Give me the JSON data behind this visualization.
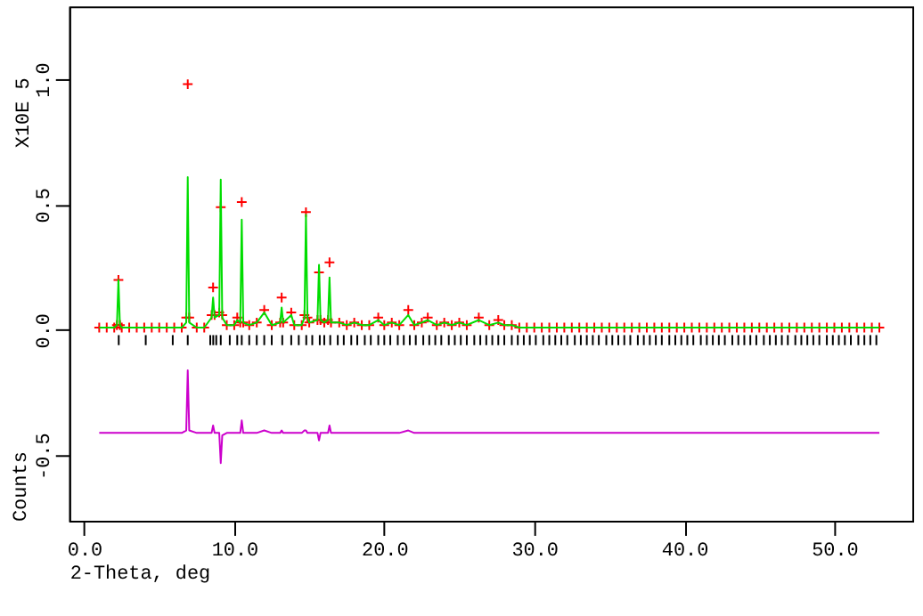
{
  "chart_data": {
    "type": "scatter",
    "xlabel": "2-Theta, deg",
    "ylabel": "Counts",
    "annotations": [
      "X10E 5"
    ],
    "xlim": [
      -1,
      55.2
    ],
    "ylim": [
      -0.76,
      1.29
    ],
    "xticks": [
      {
        "value": 0,
        "label": "0.0"
      },
      {
        "value": 10,
        "label": "10.0"
      },
      {
        "value": 20,
        "label": "20.0"
      },
      {
        "value": 30,
        "label": "30.0"
      },
      {
        "value": 40,
        "label": "40.0"
      },
      {
        "value": 50,
        "label": "50.0"
      }
    ],
    "yticks": [
      {
        "value": -0.5,
        "label": "-0.5"
      },
      {
        "value": 0,
        "label": "0.0"
      },
      {
        "value": 0.5,
        "label": "0.5"
      },
      {
        "value": 1,
        "label": "1.0"
      }
    ],
    "grid": false,
    "x": [
      1.0,
      1.5,
      2.0,
      2.18,
      2.28,
      2.38,
      2.5,
      3.0,
      3.5,
      4.0,
      4.5,
      5.0,
      5.5,
      6.0,
      6.5,
      6.8,
      6.9,
      7.0,
      7.5,
      8.0,
      8.49,
      8.59,
      8.69,
      9.0,
      9.1,
      9.2,
      9.5,
      10.0,
      10.2,
      10.4,
      10.5,
      10.6,
      11.0,
      11.5,
      12.0,
      12.5,
      13.06,
      13.16,
      13.26,
      13.8,
      14.0,
      14.5,
      14.68,
      14.78,
      14.88,
      15.0,
      15.55,
      15.65,
      15.75,
      16.0,
      16.25,
      16.35,
      16.45,
      17.0,
      17.5,
      18.0,
      18.5,
      19.0,
      19.6,
      20.0,
      20.5,
      21.0,
      21.6,
      22.0,
      22.5,
      22.9,
      23.5,
      24.0,
      24.5,
      25.0,
      25.5,
      26.3,
      27.0,
      27.6,
      28.0,
      28.5,
      29.0,
      29.5,
      30.0,
      30.5,
      31.0,
      31.5,
      32.0,
      32.5,
      33.0,
      33.5,
      34.0,
      34.5,
      35.0,
      35.5,
      36.0,
      36.5,
      37.0,
      37.5,
      38.0,
      38.5,
      39.0,
      39.5,
      40.0,
      40.5,
      41.0,
      41.5,
      42.0,
      42.5,
      43.0,
      43.5,
      44.0,
      44.5,
      45.0,
      45.5,
      46.0,
      46.5,
      47.0,
      47.5,
      48.0,
      48.5,
      49.0,
      49.5,
      50.0,
      50.5,
      51.0,
      51.5,
      52.0,
      52.5,
      53.0
    ],
    "series": [
      {
        "marker": "cross",
        "color": "#ff0000",
        "values": [
          0.01,
          0.01,
          0.01,
          0.02,
          0.2,
          0.02,
          0.01,
          0.01,
          0.01,
          0.01,
          0.01,
          0.01,
          0.01,
          0.01,
          0.01,
          0.05,
          0.98,
          0.05,
          0.01,
          0.01,
          0.06,
          0.17,
          0.06,
          0.07,
          0.49,
          0.06,
          0.02,
          0.02,
          0.05,
          0.03,
          0.51,
          0.03,
          0.02,
          0.03,
          0.08,
          0.02,
          0.03,
          0.13,
          0.03,
          0.07,
          0.02,
          0.02,
          0.06,
          0.47,
          0.05,
          0.03,
          0.04,
          0.23,
          0.04,
          0.03,
          0.04,
          0.27,
          0.03,
          0.03,
          0.02,
          0.03,
          0.02,
          0.02,
          0.05,
          0.02,
          0.03,
          0.02,
          0.08,
          0.02,
          0.03,
          0.05,
          0.02,
          0.03,
          0.02,
          0.03,
          0.02,
          0.05,
          0.02,
          0.04,
          0.02,
          0.02,
          0.01,
          0.01,
          0.01,
          0.01,
          0.01,
          0.01,
          0.01,
          0.01,
          0.01,
          0.01,
          0.01,
          0.01,
          0.01,
          0.01,
          0.01,
          0.01,
          0.01,
          0.01,
          0.01,
          0.01,
          0.01,
          0.01,
          0.01,
          0.01,
          0.01,
          0.01,
          0.01,
          0.01,
          0.01,
          0.01,
          0.01,
          0.01,
          0.01,
          0.01,
          0.01,
          0.01,
          0.01,
          0.01,
          0.01,
          0.01,
          0.01,
          0.01,
          0.01,
          0.01,
          0.01,
          0.01,
          0.01,
          0.01,
          0.01
        ]
      },
      {
        "type": "line",
        "line_style": "solid",
        "color": "#00dd00",
        "values": [
          0.01,
          0.01,
          0.01,
          0.02,
          0.2,
          0.02,
          0.01,
          0.01,
          0.01,
          0.01,
          0.01,
          0.01,
          0.01,
          0.01,
          0.01,
          0.03,
          0.61,
          0.03,
          0.01,
          0.01,
          0.05,
          0.13,
          0.05,
          0.06,
          0.6,
          0.05,
          0.02,
          0.02,
          0.04,
          0.03,
          0.44,
          0.03,
          0.02,
          0.03,
          0.07,
          0.02,
          0.03,
          0.09,
          0.03,
          0.06,
          0.02,
          0.02,
          0.05,
          0.46,
          0.05,
          0.03,
          0.04,
          0.26,
          0.04,
          0.03,
          0.04,
          0.21,
          0.03,
          0.03,
          0.02,
          0.03,
          0.02,
          0.02,
          0.04,
          0.02,
          0.03,
          0.02,
          0.06,
          0.02,
          0.03,
          0.04,
          0.02,
          0.03,
          0.02,
          0.03,
          0.02,
          0.04,
          0.02,
          0.03,
          0.02,
          0.02,
          0.01,
          0.01,
          0.01,
          0.01,
          0.01,
          0.01,
          0.01,
          0.01,
          0.01,
          0.01,
          0.01,
          0.01,
          0.01,
          0.01,
          0.01,
          0.01,
          0.01,
          0.01,
          0.01,
          0.01,
          0.01,
          0.01,
          0.01,
          0.01,
          0.01,
          0.01,
          0.01,
          0.01,
          0.01,
          0.01,
          0.01,
          0.01,
          0.01,
          0.01,
          0.01,
          0.01,
          0.01,
          0.01,
          0.01,
          0.01,
          0.01,
          0.01,
          0.01,
          0.01,
          0.01,
          0.01,
          0.01,
          0.01,
          0.01
        ]
      },
      {
        "type": "line",
        "line_style": "solid",
        "color": "#cc00cc",
        "values": [
          -0.41,
          -0.41,
          -0.41,
          -0.41,
          -0.41,
          -0.41,
          -0.41,
          -0.41,
          -0.41,
          -0.41,
          -0.41,
          -0.41,
          -0.41,
          -0.41,
          -0.41,
          -0.4,
          -0.16,
          -0.4,
          -0.41,
          -0.41,
          -0.41,
          -0.38,
          -0.41,
          -0.41,
          -0.53,
          -0.42,
          -0.41,
          -0.41,
          -0.41,
          -0.41,
          -0.36,
          -0.41,
          -0.41,
          -0.41,
          -0.4,
          -0.41,
          -0.41,
          -0.4,
          -0.41,
          -0.41,
          -0.41,
          -0.41,
          -0.4,
          -0.4,
          -0.41,
          -0.41,
          -0.41,
          -0.44,
          -0.41,
          -0.41,
          -0.41,
          -0.38,
          -0.41,
          -0.41,
          -0.41,
          -0.41,
          -0.41,
          -0.41,
          -0.41,
          -0.41,
          -0.41,
          -0.41,
          -0.4,
          -0.41,
          -0.41,
          -0.41,
          -0.41,
          -0.41,
          -0.41,
          -0.41,
          -0.41,
          -0.41,
          -0.41,
          -0.41,
          -0.41,
          -0.41,
          -0.41,
          -0.41,
          -0.41,
          -0.41,
          -0.41,
          -0.41,
          -0.41,
          -0.41,
          -0.41,
          -0.41,
          -0.41,
          -0.41,
          -0.41,
          -0.41,
          -0.41,
          -0.41,
          -0.41,
          -0.41,
          -0.41,
          -0.41,
          -0.41,
          -0.41,
          -0.41,
          -0.41,
          -0.41,
          -0.41,
          -0.41,
          -0.41,
          -0.41,
          -0.41,
          -0.41,
          -0.41,
          -0.41,
          -0.41,
          -0.41,
          -0.41,
          -0.41,
          -0.41,
          -0.41,
          -0.41,
          -0.41,
          -0.41,
          -0.41,
          -0.41,
          -0.41,
          -0.41,
          -0.41,
          -0.41,
          -0.41
        ]
      },
      {
        "type": "bar",
        "color": "#000000",
        "x": [
          2.3,
          4.1,
          5.9,
          6.9,
          8.4,
          8.6,
          8.8,
          9.1,
          9.7,
          10.2,
          10.5,
          11.0,
          11.5,
          12.0,
          12.5,
          13.2,
          13.8,
          14.3,
          14.8,
          15.2,
          15.7,
          16.0,
          16.4,
          16.9,
          17.3,
          17.8,
          18.2,
          18.7,
          19.1,
          19.6,
          20.0,
          20.4,
          20.9,
          21.3,
          21.7,
          22.1,
          22.6,
          23.0,
          23.4,
          23.8,
          24.3,
          24.7,
          25.1,
          25.5,
          26.0,
          26.4,
          26.8,
          27.2,
          27.6,
          28.0,
          28.5,
          28.9,
          29.3,
          29.7,
          30.1,
          30.6,
          31.0,
          31.4,
          31.8,
          32.2,
          32.7,
          33.1,
          33.5,
          33.9,
          34.3,
          34.8,
          35.2,
          35.6,
          36.0,
          36.4,
          36.9,
          37.3,
          37.7,
          38.1,
          38.5,
          39.0,
          39.4,
          39.8,
          40.2,
          40.6,
          41.1,
          41.5,
          41.9,
          42.3,
          42.7,
          43.2,
          43.6,
          44.0,
          44.4,
          44.8,
          45.3,
          45.7,
          46.1,
          46.5,
          46.9,
          47.4,
          47.8,
          48.2,
          48.6,
          49.0,
          49.5,
          49.9,
          50.3,
          50.7,
          51.1,
          51.6,
          52.0,
          52.4,
          52.8
        ],
        "base": [
          -0.06,
          -0.06,
          -0.06,
          -0.06,
          -0.06,
          -0.06,
          -0.06,
          -0.06,
          -0.06,
          -0.06,
          -0.06,
          -0.06,
          -0.06,
          -0.06,
          -0.06,
          -0.06,
          -0.06,
          -0.06,
          -0.06,
          -0.06,
          -0.06,
          -0.06,
          -0.06,
          -0.06,
          -0.06,
          -0.06,
          -0.06,
          -0.06,
          -0.06,
          -0.06,
          -0.06,
          -0.06,
          -0.06,
          -0.06,
          -0.06,
          -0.06,
          -0.06,
          -0.06,
          -0.06,
          -0.06,
          -0.06,
          -0.06,
          -0.06,
          -0.06,
          -0.06,
          -0.06,
          -0.06,
          -0.06,
          -0.06,
          -0.06,
          -0.06,
          -0.06,
          -0.06,
          -0.06,
          -0.06,
          -0.06,
          -0.06,
          -0.06,
          -0.06,
          -0.06,
          -0.06,
          -0.06,
          -0.06,
          -0.06,
          -0.06,
          -0.06,
          -0.06,
          -0.06,
          -0.06,
          -0.06,
          -0.06,
          -0.06,
          -0.06,
          -0.06,
          -0.06,
          -0.06,
          -0.06,
          -0.06,
          -0.06,
          -0.06,
          -0.06,
          -0.06,
          -0.06,
          -0.06,
          -0.06,
          -0.06,
          -0.06,
          -0.06,
          -0.06,
          -0.06,
          -0.06,
          -0.06,
          -0.06,
          -0.06,
          -0.06,
          -0.06,
          -0.06,
          -0.06,
          -0.06,
          -0.06,
          -0.06,
          -0.06,
          -0.06,
          -0.06,
          -0.06,
          -0.06,
          -0.06,
          -0.06,
          -0.06
        ],
        "values": [
          0.04,
          0.04,
          0.04,
          0.04,
          0.04,
          0.04,
          0.04,
          0.04,
          0.04,
          0.04,
          0.04,
          0.04,
          0.04,
          0.04,
          0.04,
          0.04,
          0.04,
          0.04,
          0.04,
          0.04,
          0.04,
          0.04,
          0.04,
          0.04,
          0.04,
          0.04,
          0.04,
          0.04,
          0.04,
          0.04,
          0.04,
          0.04,
          0.04,
          0.04,
          0.04,
          0.04,
          0.04,
          0.04,
          0.04,
          0.04,
          0.04,
          0.04,
          0.04,
          0.04,
          0.04,
          0.04,
          0.04,
          0.04,
          0.04,
          0.04,
          0.04,
          0.04,
          0.04,
          0.04,
          0.04,
          0.04,
          0.04,
          0.04,
          0.04,
          0.04,
          0.04,
          0.04,
          0.04,
          0.04,
          0.04,
          0.04,
          0.04,
          0.04,
          0.04,
          0.04,
          0.04,
          0.04,
          0.04,
          0.04,
          0.04,
          0.04,
          0.04,
          0.04,
          0.04,
          0.04,
          0.04,
          0.04,
          0.04,
          0.04,
          0.04,
          0.04,
          0.04,
          0.04,
          0.04,
          0.04,
          0.04,
          0.04,
          0.04,
          0.04,
          0.04,
          0.04,
          0.04,
          0.04,
          0.04,
          0.04,
          0.04,
          0.04,
          0.04,
          0.04,
          0.04,
          0.04,
          0.04,
          0.04,
          0.04
        ]
      }
    ]
  }
}
